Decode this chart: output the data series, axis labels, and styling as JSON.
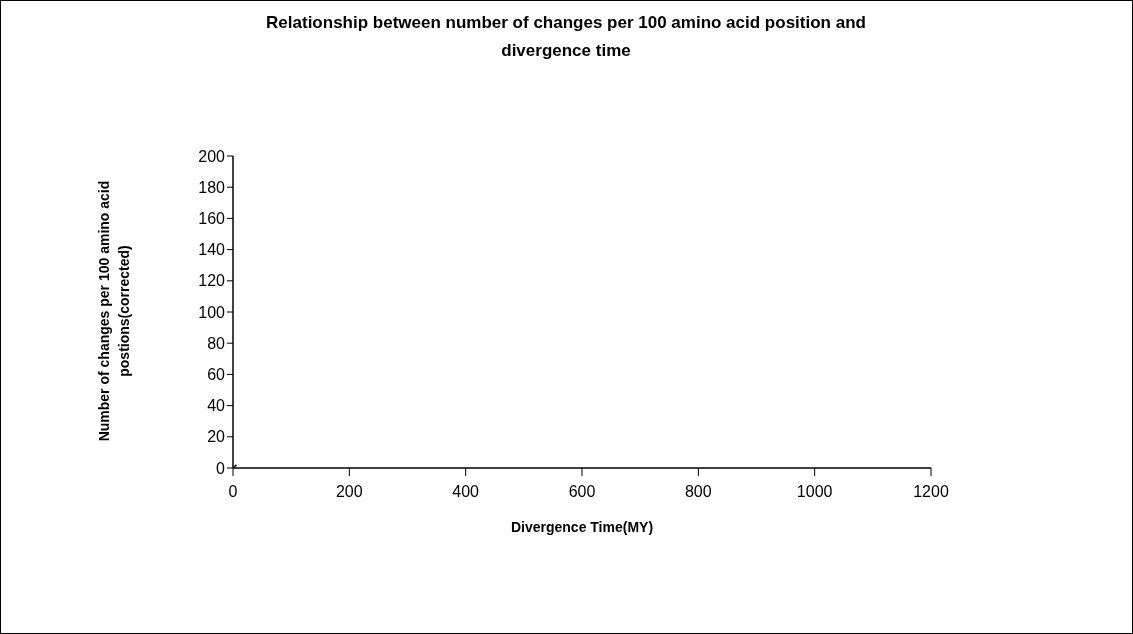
{
  "chart_data": {
    "type": "line",
    "title": "Relationship between number of changes per 100 amino acid position and divergence time",
    "xlabel": "Divergence Time(MY)",
    "ylabel": "Number of changes per 100 amino acid postions(corrected)",
    "series": [
      {
        "color": "#000000",
        "x": [
          0,
          6
        ],
        "values": [
          0,
          2
        ]
      }
    ],
    "xlim": [
      0,
      1200
    ],
    "xticks": [
      0,
      200,
      400,
      600,
      800,
      1000,
      1200
    ],
    "ylim": [
      0,
      200
    ],
    "yticks": [
      0,
      20,
      40,
      60,
      80,
      100,
      120,
      140,
      160,
      180,
      200
    ],
    "grid": false,
    "marker": "none"
  }
}
